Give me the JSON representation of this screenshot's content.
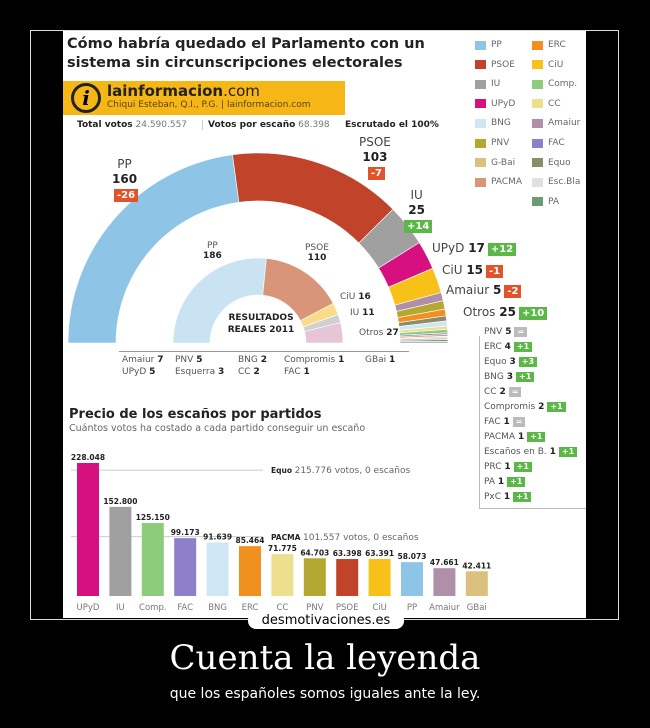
{
  "infographic": {
    "title": "Cómo habría quedado el Parlamento con un sistema sin circunscripciones electorales",
    "brand": "lainformacion",
    "brand_tld": ".com",
    "credit": "Chiqui Esteban, Q.I., P.G. | lainformacion.com",
    "total_votes_label": "Total votos",
    "total_votes": "24.590.557",
    "votes_per_seat_label": "Votos por escaño",
    "votes_per_seat": "68.398",
    "counted": "Escrutado el 100%",
    "legend": [
      {
        "name": "PP",
        "color": "#8ec5e6"
      },
      {
        "name": "ERC",
        "color": "#f0901e"
      },
      {
        "name": "PSOE",
        "color": "#c0432a"
      },
      {
        "name": "CiU",
        "color": "#f8c11a"
      },
      {
        "name": "IU",
        "color": "#a0a0a0"
      },
      {
        "name": "Comp.",
        "color": "#8ccd7c"
      },
      {
        "name": "UPyD",
        "color": "#d6117f"
      },
      {
        "name": "CC",
        "color": "#ece08e"
      },
      {
        "name": "BNG",
        "color": "#cfe6f5"
      },
      {
        "name": "Amaiur",
        "color": "#b08fa8"
      },
      {
        "name": "PNV",
        "color": "#b5a832"
      },
      {
        "name": "FAC",
        "color": "#8e80c8"
      },
      {
        "name": "G-Bai",
        "color": "#dcc07e"
      },
      {
        "name": "Equo",
        "color": "#8c8c68"
      },
      {
        "name": "PACMA",
        "color": "#d9957a"
      },
      {
        "name": "Esc.Bla",
        "color": "#e0e0e0"
      },
      {
        "name": "",
        "color": ""
      },
      {
        "name": "PA",
        "color": "#6d9a73"
      }
    ],
    "inner_title": "RESULTADOS REALES 2011",
    "main_labels": [
      {
        "name": "PP",
        "seats": "160",
        "change": "-26",
        "tone": "red"
      },
      {
        "name": "PSOE",
        "seats": "103",
        "change": "-7",
        "tone": "red"
      },
      {
        "name": "IU",
        "seats": "25",
        "change": "+14",
        "tone": "grn"
      },
      {
        "name": "UPyD",
        "seats": "17",
        "change": "+12",
        "tone": "grn"
      },
      {
        "name": "CiU",
        "seats": "15",
        "change": "-1",
        "tone": "red"
      },
      {
        "name": "Amaiur",
        "seats": "5",
        "change": "-2",
        "tone": "red"
      },
      {
        "name": "Otros",
        "seats": "25",
        "change": "+10",
        "tone": "grn"
      }
    ],
    "others_breakdown": [
      {
        "name": "PNV",
        "seats": "5",
        "change": "=",
        "tone": "gry"
      },
      {
        "name": "ERC",
        "seats": "4",
        "change": "+1",
        "tone": "grn"
      },
      {
        "name": "Equo",
        "seats": "3",
        "change": "+3",
        "tone": "grn"
      },
      {
        "name": "BNG",
        "seats": "3",
        "change": "+1",
        "tone": "grn"
      },
      {
        "name": "CC",
        "seats": "2",
        "change": "=",
        "tone": "gry"
      },
      {
        "name": "Compromis",
        "seats": "2",
        "change": "+1",
        "tone": "grn"
      },
      {
        "name": "FAC",
        "seats": "1",
        "change": "=",
        "tone": "gry"
      },
      {
        "name": "PACMA",
        "seats": "1",
        "change": "+1",
        "tone": "grn"
      },
      {
        "name": "Escaños en B.",
        "seats": "1",
        "change": "+1",
        "tone": "grn"
      },
      {
        "name": "PRC",
        "seats": "1",
        "change": "+1",
        "tone": "grn"
      },
      {
        "name": "PA",
        "seats": "1",
        "change": "+1",
        "tone": "grn"
      },
      {
        "name": "PxC",
        "seats": "1",
        "change": "+1",
        "tone": "grn"
      }
    ],
    "real_labels": [
      {
        "name": "PP",
        "seats": "186"
      },
      {
        "name": "PSOE",
        "seats": "110"
      },
      {
        "name": "CiU",
        "seats": "16"
      },
      {
        "name": "IU",
        "seats": "11"
      },
      {
        "name": "Otros",
        "seats": "27"
      }
    ],
    "real_others": [
      {
        "name": "Amaiur",
        "seats": "7"
      },
      {
        "name": "UPyD",
        "seats": "5"
      },
      {
        "name": "PNV",
        "seats": "5"
      },
      {
        "name": "Esquerra",
        "seats": "3"
      },
      {
        "name": "BNG",
        "seats": "2"
      },
      {
        "name": "CC",
        "seats": "2"
      },
      {
        "name": "Compromis",
        "seats": "1"
      },
      {
        "name": "FAC",
        "seats": "1"
      },
      {
        "name": "GBai",
        "seats": "1"
      }
    ],
    "price_title": "Precio de los escaños por partidos",
    "price_subtitle": "Cuántos votos ha costado a cada partido conseguir un escaño",
    "annotations": [
      {
        "party": "Equo",
        "text": "215.776 votos, 0 escaños",
        "value": 215776
      },
      {
        "party": "PACMA",
        "text": "101.557 votos, 0 escaños",
        "value": 101557
      }
    ]
  },
  "chart_data": [
    {
      "type": "pie",
      "variant": "semicircle-donut",
      "title": "",
      "series": [
        {
          "name": "",
          "values": [
            {
              "label": "PP",
              "value": 160,
              "color": "#8ec5e6"
            },
            {
              "label": "PSOE",
              "value": 103,
              "color": "#c0432a"
            },
            {
              "label": "IU",
              "value": 25,
              "color": "#a0a0a0"
            },
            {
              "label": "UPyD",
              "value": 17,
              "color": "#d6117f"
            },
            {
              "label": "CiU",
              "value": 15,
              "color": "#f8c11a"
            },
            {
              "label": "Amaiur",
              "value": 5,
              "color": "#b08fa8"
            },
            {
              "label": "PNV",
              "value": 5,
              "color": "#b5a832"
            },
            {
              "label": "ERC",
              "value": 4,
              "color": "#f0901e"
            },
            {
              "label": "Equo",
              "value": 3,
              "color": "#8c8c68"
            },
            {
              "label": "BNG",
              "value": 3,
              "color": "#cfe6f5"
            },
            {
              "label": "CC",
              "value": 2,
              "color": "#ece08e"
            },
            {
              "label": "Compromis",
              "value": 2,
              "color": "#8ccd7c"
            },
            {
              "label": "FAC",
              "value": 1,
              "color": "#8e80c8"
            },
            {
              "label": "PACMA",
              "value": 1,
              "color": "#d9957a"
            },
            {
              "label": "Escaños en B.",
              "value": 1,
              "color": "#e0e0e0"
            },
            {
              "label": "PRC",
              "value": 1,
              "color": "#c7b89a"
            },
            {
              "label": "PA",
              "value": 1,
              "color": "#6d9a73"
            },
            {
              "label": "PxC",
              "value": 1,
              "color": "#9aa0b0"
            }
          ]
        },
        {
          "name": "RESULTADOS REALES 2011",
          "values": [
            {
              "label": "PP",
              "value": 186,
              "color": "#c9e3f2"
            },
            {
              "label": "PSOE",
              "value": 110,
              "color": "#d9957a"
            },
            {
              "label": "CiU",
              "value": 16,
              "color": "#f8dc8a"
            },
            {
              "label": "IU",
              "value": 11,
              "color": "#d0d0d0"
            },
            {
              "label": "Otros",
              "value": 27,
              "color": "#e6c6d6"
            }
          ]
        }
      ]
    },
    {
      "type": "bar",
      "title": "Precio de los escaños por partidos",
      "xlabel": "",
      "ylabel": "",
      "ylim": [
        0,
        228048
      ],
      "categories": [
        "UPyD",
        "IU",
        "Comp.",
        "FAC",
        "BNG",
        "ERC",
        "CC",
        "PNV",
        "PSOE",
        "CiU",
        "PP",
        "Amaiur",
        "GBai"
      ],
      "values": [
        228048,
        152800,
        125150,
        99173,
        91639,
        85464,
        71775,
        64703,
        63398,
        63391,
        58073,
        47661,
        42411
      ],
      "value_labels": [
        "228.048",
        "152.800",
        "125.150",
        "99.173",
        "91.639",
        "85.464",
        "71.775",
        "64.703",
        "63.398",
        "63.391",
        "58.073",
        "47.661",
        "42.411"
      ],
      "colors": [
        "#d6117f",
        "#a0a0a0",
        "#8ccd7c",
        "#8e80c8",
        "#cfe6f5",
        "#f0901e",
        "#ece08e",
        "#b5a832",
        "#c0432a",
        "#f8c11a",
        "#8ec5e6",
        "#b08fa8",
        "#dcc07e"
      ]
    }
  ],
  "poster": {
    "site": "desmotivaciones.es",
    "caption": "Cuenta la leyenda",
    "subcaption": "que los españoles somos iguales ante la ley."
  }
}
